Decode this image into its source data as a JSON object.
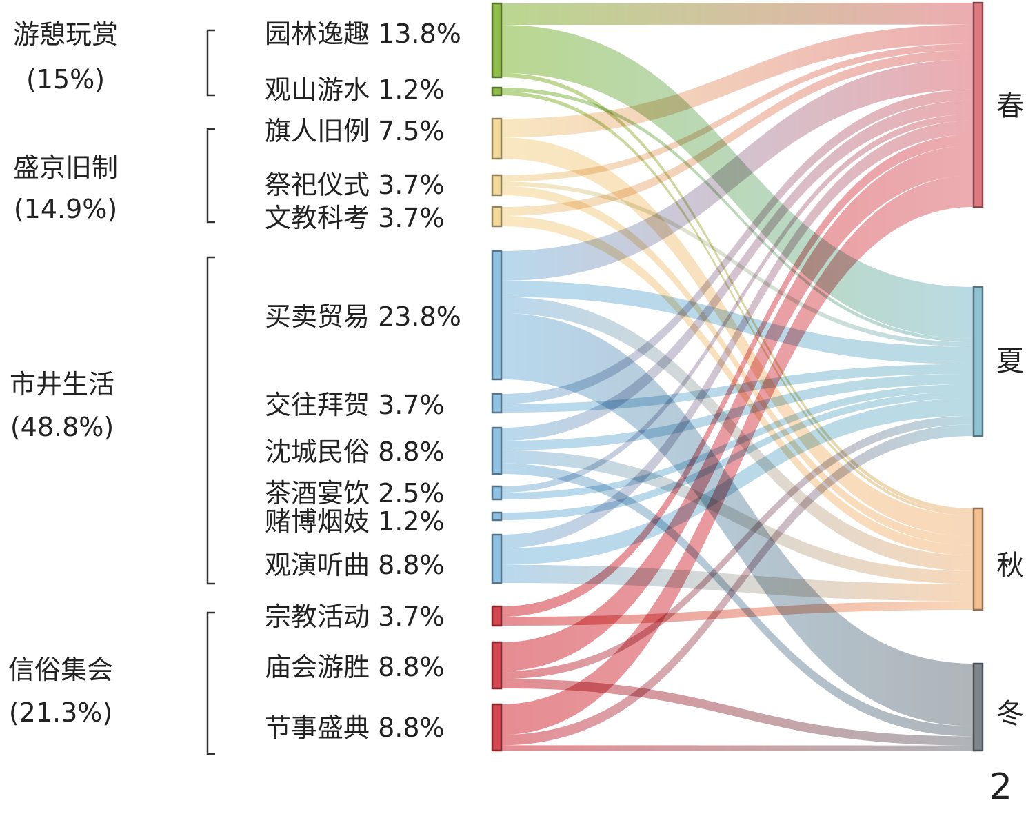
{
  "figure_number": "2",
  "groups": [
    {
      "name": "游憩玩赏",
      "percent": "(15%)"
    },
    {
      "name": "盛京旧制",
      "percent": "(14.9%)"
    },
    {
      "name": "市井生活",
      "percent": "(48.8%)"
    },
    {
      "name": "信俗集会",
      "percent": "(21.3%)"
    }
  ],
  "categories": [
    {
      "label": "园林逸趣 13.8%",
      "group": 0,
      "value": 13.8,
      "color": "#8fbe4b"
    },
    {
      "label": "观山游水 1.2%",
      "group": 0,
      "value": 1.2,
      "color": "#8fbe4b"
    },
    {
      "label": "旗人旧例 7.5%",
      "group": 1,
      "value": 7.5,
      "color": "#f3d99a"
    },
    {
      "label": "祭祀仪式 3.7%",
      "group": 1,
      "value": 3.7,
      "color": "#f3d99a"
    },
    {
      "label": "文教科考 3.7%",
      "group": 1,
      "value": 3.7,
      "color": "#f3d99a"
    },
    {
      "label": "买卖贸易 23.8%",
      "group": 2,
      "value": 23.8,
      "color": "#8ec1e2"
    },
    {
      "label": "交往拜贺 3.7%",
      "group": 2,
      "value": 3.7,
      "color": "#8ec1e2"
    },
    {
      "label": "沈城民俗 8.8%",
      "group": 2,
      "value": 8.8,
      "color": "#8ec1e2"
    },
    {
      "label": "茶酒宴饮 2.5%",
      "group": 2,
      "value": 2.5,
      "color": "#8ec1e2"
    },
    {
      "label": "赌博烟妓 1.2%",
      "group": 2,
      "value": 1.2,
      "color": "#8ec1e2"
    },
    {
      "label": "观演听曲 8.8%",
      "group": 2,
      "value": 8.8,
      "color": "#8ec1e2"
    },
    {
      "label": "宗教活动 3.7%",
      "group": 3,
      "value": 3.7,
      "color": "#d6464f"
    },
    {
      "label": "庙会游胜 8.8%",
      "group": 3,
      "value": 8.8,
      "color": "#d6464f"
    },
    {
      "label": "节事盛典 8.8%",
      "group": 3,
      "value": 8.8,
      "color": "#d6464f"
    }
  ],
  "seasons": [
    {
      "label": "春",
      "color": "#e07a80"
    },
    {
      "label": "夏",
      "color": "#8fc3d3"
    },
    {
      "label": "秋",
      "color": "#f4c08f"
    },
    {
      "label": "冬",
      "color": "#7f878d"
    }
  ],
  "flows": [
    {
      "from": 0,
      "to": 0,
      "value": 4.0
    },
    {
      "from": 0,
      "to": 1,
      "value": 9.0
    },
    {
      "from": 0,
      "to": 2,
      "value": 0.8
    },
    {
      "from": 1,
      "to": 1,
      "value": 0.6
    },
    {
      "from": 1,
      "to": 2,
      "value": 0.6
    },
    {
      "from": 2,
      "to": 0,
      "value": 3.5
    },
    {
      "from": 2,
      "to": 2,
      "value": 4.0
    },
    {
      "from": 3,
      "to": 0,
      "value": 1.2
    },
    {
      "from": 3,
      "to": 1,
      "value": 0.8
    },
    {
      "from": 3,
      "to": 2,
      "value": 1.7
    },
    {
      "from": 4,
      "to": 0,
      "value": 1.7
    },
    {
      "from": 4,
      "to": 2,
      "value": 2.0
    },
    {
      "from": 5,
      "to": 0,
      "value": 5.5
    },
    {
      "from": 5,
      "to": 1,
      "value": 3.0
    },
    {
      "from": 5,
      "to": 2,
      "value": 3.0
    },
    {
      "from": 5,
      "to": 3,
      "value": 12.3
    },
    {
      "from": 6,
      "to": 0,
      "value": 2.0
    },
    {
      "from": 6,
      "to": 1,
      "value": 1.7
    },
    {
      "from": 7,
      "to": 0,
      "value": 2.5
    },
    {
      "from": 7,
      "to": 1,
      "value": 1.8
    },
    {
      "from": 7,
      "to": 2,
      "value": 2.5
    },
    {
      "from": 7,
      "to": 3,
      "value": 2.0
    },
    {
      "from": 8,
      "to": 0,
      "value": 1.2
    },
    {
      "from": 8,
      "to": 1,
      "value": 1.3
    },
    {
      "from": 9,
      "to": 1,
      "value": 1.2
    },
    {
      "from": 10,
      "to": 0,
      "value": 2.5
    },
    {
      "from": 10,
      "to": 1,
      "value": 3.0
    },
    {
      "from": 10,
      "to": 2,
      "value": 3.3
    },
    {
      "from": 11,
      "to": 0,
      "value": 2.0
    },
    {
      "from": 11,
      "to": 2,
      "value": 1.7
    },
    {
      "from": 12,
      "to": 0,
      "value": 5.5
    },
    {
      "from": 12,
      "to": 1,
      "value": 1.5
    },
    {
      "from": 12,
      "to": 3,
      "value": 1.8
    },
    {
      "from": 13,
      "to": 0,
      "value": 5.8
    },
    {
      "from": 13,
      "to": 1,
      "value": 2.0
    },
    {
      "from": 13,
      "to": 3,
      "value": 1.0
    }
  ]
}
